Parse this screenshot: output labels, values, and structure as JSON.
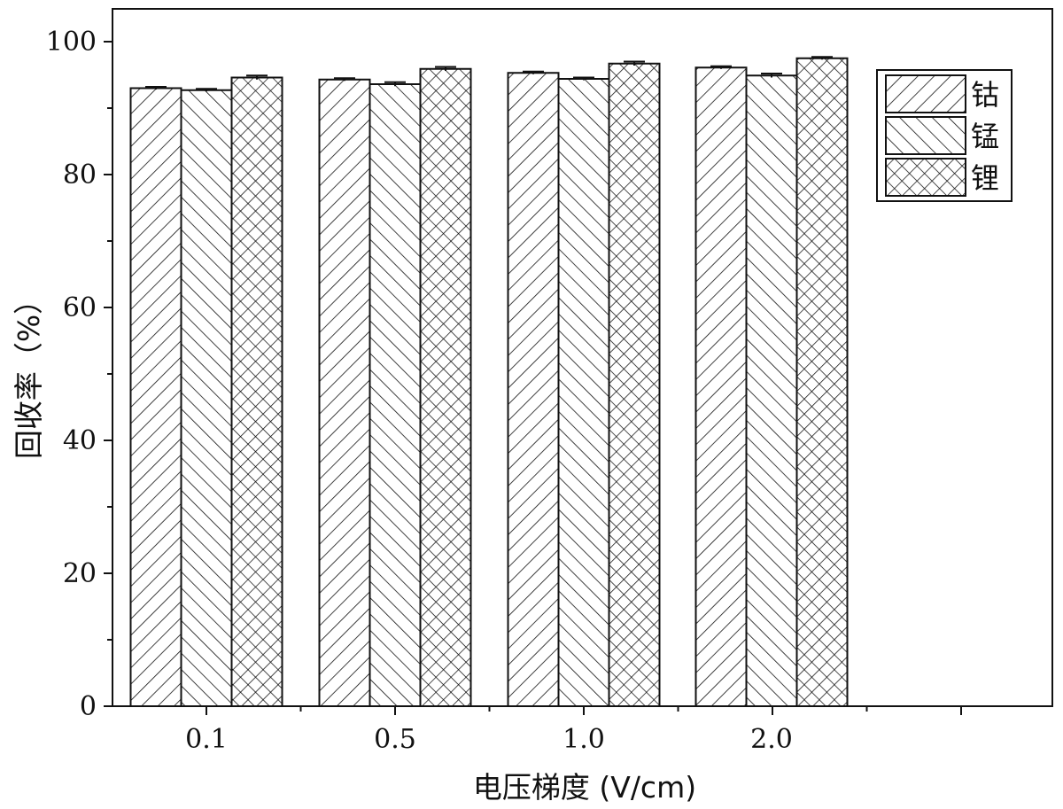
{
  "chart_data": {
    "type": "bar",
    "categories": [
      "0.1",
      "0.5",
      "1.0",
      "2.0"
    ],
    "series": [
      {
        "name": "钴",
        "values": [
          93.0,
          94.3,
          95.3,
          96.1
        ],
        "errors": [
          0.2,
          0.2,
          0.2,
          0.2
        ],
        "pattern": "forward-diagonal"
      },
      {
        "name": "锰",
        "values": [
          92.7,
          93.6,
          94.4,
          94.9
        ],
        "errors": [
          0.2,
          0.3,
          0.2,
          0.3
        ],
        "pattern": "backward-diagonal"
      },
      {
        "name": "锂",
        "values": [
          94.6,
          95.9,
          96.7,
          97.5
        ],
        "errors": [
          0.3,
          0.3,
          0.3,
          0.2
        ],
        "pattern": "cross-hatch"
      }
    ],
    "xlabel": "电压梯度 (V/cm)",
    "ylabel": "回收率（%）",
    "ylim": [
      0,
      100
    ],
    "yticks": [
      0,
      20,
      40,
      60,
      80,
      100
    ],
    "grid": false,
    "legend_position": "top-right"
  }
}
